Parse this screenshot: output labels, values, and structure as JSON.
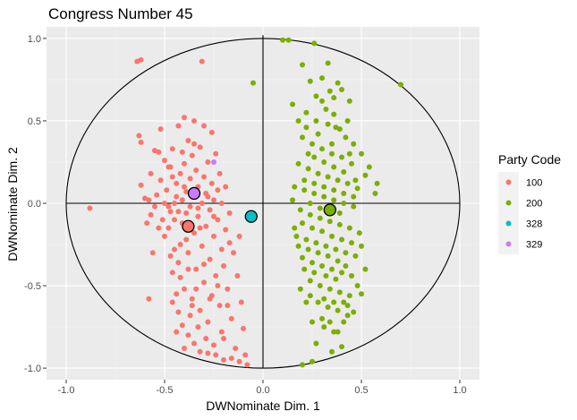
{
  "chart_data": {
    "type": "scatter",
    "title": "Congress Number  45",
    "xlabel": "DWNominate Dim. 1",
    "ylabel": "DWNominate Dim. 2",
    "xlim": [
      -1.1,
      1.1
    ],
    "ylim": [
      -1.07,
      1.07
    ],
    "x_ticks": [
      -1.0,
      -0.5,
      0.0,
      0.5,
      1.0
    ],
    "y_ticks": [
      -1.0,
      -0.5,
      0.0,
      0.5,
      1.0
    ],
    "x_tick_labels": [
      "-1.0",
      "-0.5",
      "0.0",
      "0.5",
      "1.0"
    ],
    "y_tick_labels": [
      "-1.0",
      "-0.5",
      "0.0",
      "0.5",
      "1.0"
    ],
    "grid": true,
    "background": "#ebebeb",
    "unit_circle": true,
    "axes_crosshair": true,
    "legend": {
      "title": "Party Code",
      "position": "right",
      "entries": [
        {
          "label": "100",
          "color": "#f8766d"
        },
        {
          "label": "200",
          "color": "#7cae00"
        },
        {
          "label": "328",
          "color": "#00bfc4"
        },
        {
          "label": "329",
          "color": "#c77cff"
        }
      ]
    },
    "series": [
      {
        "name": "100",
        "color": "#f8766d",
        "centroid": [
          -0.38,
          -0.14
        ],
        "points": [
          [
            -0.88,
            -0.03
          ],
          [
            -0.64,
            0.86
          ],
          [
            -0.62,
            0.87
          ],
          [
            -0.31,
            0.86
          ],
          [
            -0.58,
            -0.58
          ],
          [
            -0.63,
            0.41
          ],
          [
            -0.62,
            0.37
          ],
          [
            -0.62,
            0.11
          ],
          [
            -0.6,
            0.03
          ],
          [
            -0.57,
            -0.07
          ],
          [
            -0.55,
            -0.02
          ],
          [
            -0.54,
            0.05
          ],
          [
            -0.53,
            0.31
          ],
          [
            -0.52,
            0.14
          ],
          [
            -0.51,
            -0.1
          ],
          [
            -0.5,
            -0.2
          ],
          [
            -0.49,
            0.08
          ],
          [
            -0.48,
            0.22
          ],
          [
            -0.47,
            -0.05
          ],
          [
            -0.46,
            0.33
          ],
          [
            -0.45,
            0.0
          ],
          [
            -0.45,
            -0.28
          ],
          [
            -0.44,
            0.12
          ],
          [
            -0.43,
            -0.36
          ],
          [
            -0.42,
            0.18
          ],
          [
            -0.42,
            -0.45
          ],
          [
            -0.41,
            0.02
          ],
          [
            -0.41,
            -0.12
          ],
          [
            -0.4,
            0.24
          ],
          [
            -0.4,
            -0.52
          ],
          [
            -0.39,
            0.07
          ],
          [
            -0.39,
            -0.22
          ],
          [
            -0.38,
            0.38
          ],
          [
            -0.38,
            -0.3
          ],
          [
            -0.37,
            0.15
          ],
          [
            -0.37,
            -0.02
          ],
          [
            -0.36,
            -0.58
          ],
          [
            -0.36,
            0.29
          ],
          [
            -0.35,
            0.04
          ],
          [
            -0.35,
            -0.18
          ],
          [
            -0.34,
            0.2
          ],
          [
            -0.34,
            -0.4
          ],
          [
            -0.33,
            0.1
          ],
          [
            -0.33,
            -0.08
          ],
          [
            -0.32,
            -0.65
          ],
          [
            -0.32,
            0.34
          ],
          [
            -0.31,
            0.0
          ],
          [
            -0.31,
            -0.26
          ],
          [
            -0.3,
            0.16
          ],
          [
            -0.3,
            -0.48
          ],
          [
            -0.29,
            0.06
          ],
          [
            -0.29,
            -0.14
          ],
          [
            -0.28,
            -0.72
          ],
          [
            -0.28,
            0.25
          ],
          [
            -0.27,
            -0.04
          ],
          [
            -0.27,
            -0.34
          ],
          [
            -0.26,
            0.12
          ],
          [
            -0.26,
            -0.56
          ],
          [
            -0.25,
            0.02
          ],
          [
            -0.25,
            -0.2
          ],
          [
            -0.24,
            0.3
          ],
          [
            -0.24,
            -0.44
          ],
          [
            -0.23,
            0.08
          ],
          [
            -0.23,
            -0.1
          ],
          [
            -0.22,
            -0.62
          ],
          [
            -0.22,
            0.18
          ],
          [
            -0.21,
            -0.28
          ],
          [
            -0.21,
            0.0
          ],
          [
            -0.2,
            -0.82
          ],
          [
            -0.2,
            -0.38
          ],
          [
            -0.19,
            -0.16
          ],
          [
            -0.18,
            -0.52
          ],
          [
            -0.17,
            -0.06
          ],
          [
            -0.16,
            -0.7
          ],
          [
            -0.15,
            -0.3
          ],
          [
            -0.14,
            -0.88
          ],
          [
            -0.13,
            -0.44
          ],
          [
            -0.12,
            -0.2
          ],
          [
            -0.11,
            -0.6
          ],
          [
            -0.1,
            -0.76
          ],
          [
            -0.09,
            -0.92
          ],
          [
            -0.08,
            -0.98
          ],
          [
            -0.12,
            -0.96
          ],
          [
            -0.16,
            -0.94
          ],
          [
            -0.2,
            -0.95
          ],
          [
            -0.24,
            -0.92
          ],
          [
            -0.28,
            -0.91
          ],
          [
            -0.32,
            -0.9
          ],
          [
            -0.35,
            -0.85
          ],
          [
            -0.38,
            -0.8
          ],
          [
            -0.41,
            -0.74
          ],
          [
            -0.43,
            -0.66
          ],
          [
            -0.44,
            -0.55
          ],
          [
            -0.46,
            -0.42
          ],
          [
            -0.47,
            -0.32
          ],
          [
            -0.48,
            -0.15
          ],
          [
            -0.5,
            0.0
          ],
          [
            -0.43,
            0.47
          ],
          [
            -0.4,
            0.52
          ],
          [
            -0.35,
            0.5
          ],
          [
            -0.3,
            0.47
          ],
          [
            -0.26,
            0.43
          ],
          [
            -0.52,
            0.45
          ],
          [
            -0.55,
            0.32
          ],
          [
            -0.57,
            0.18
          ],
          [
            -0.59,
            -0.12
          ],
          [
            -0.53,
            -0.15
          ],
          [
            -0.56,
            -0.3
          ],
          [
            -0.43,
            -0.05
          ],
          [
            -0.33,
            -0.03
          ],
          [
            -0.36,
            0.06
          ],
          [
            -0.4,
            0.1
          ],
          [
            -0.44,
            0.04
          ],
          [
            -0.48,
            -0.02
          ],
          [
            -0.46,
            0.16
          ],
          [
            -0.5,
            0.26
          ],
          [
            -0.41,
            0.31
          ],
          [
            -0.35,
            0.36
          ],
          [
            -0.28,
            0.04
          ],
          [
            -0.25,
            -0.08
          ],
          [
            -0.3,
            -0.37
          ],
          [
            -0.34,
            -0.52
          ],
          [
            -0.38,
            -0.4
          ],
          [
            -0.42,
            -0.25
          ],
          [
            -0.45,
            -0.1
          ],
          [
            -0.39,
            -0.06
          ],
          [
            -0.37,
            -0.68
          ],
          [
            -0.33,
            -0.75
          ],
          [
            -0.29,
            -0.82
          ],
          [
            -0.25,
            -0.86
          ],
          [
            -0.21,
            -0.78
          ],
          [
            -0.18,
            -0.62
          ],
          [
            -0.17,
            -0.24
          ],
          [
            -0.19,
            0.1
          ],
          [
            -0.44,
            -0.78
          ],
          [
            -0.4,
            -0.88
          ],
          [
            -0.36,
            -0.62
          ],
          [
            -0.32,
            -0.15
          ],
          [
            -0.47,
            0.22
          ],
          [
            -0.58,
            0.02
          ],
          [
            -0.27,
            -0.58
          ],
          [
            -0.23,
            -0.5
          ],
          [
            -0.46,
            -0.6
          ]
        ]
      },
      {
        "name": "200",
        "color": "#7cae00",
        "centroid": [
          0.34,
          -0.04
        ],
        "points": [
          [
            0.1,
            0.99
          ],
          [
            0.13,
            0.99
          ],
          [
            -0.05,
            0.73
          ],
          [
            0.7,
            0.72
          ],
          [
            0.26,
            0.97
          ],
          [
            0.33,
            0.85
          ],
          [
            0.2,
            0.84
          ],
          [
            0.3,
            0.76
          ],
          [
            0.24,
            0.74
          ],
          [
            0.38,
            0.73
          ],
          [
            0.4,
            0.69
          ],
          [
            0.36,
            0.64
          ],
          [
            0.44,
            0.62
          ],
          [
            0.22,
            0.55
          ],
          [
            0.27,
            0.5
          ],
          [
            0.33,
            0.48
          ],
          [
            0.37,
            0.46
          ],
          [
            0.42,
            0.4
          ],
          [
            0.2,
            0.4
          ],
          [
            0.25,
            0.36
          ],
          [
            0.3,
            0.33
          ],
          [
            0.35,
            0.3
          ],
          [
            0.4,
            0.28
          ],
          [
            0.45,
            0.24
          ],
          [
            0.18,
            0.24
          ],
          [
            0.23,
            0.21
          ],
          [
            0.28,
            0.18
          ],
          [
            0.33,
            0.16
          ],
          [
            0.38,
            0.14
          ],
          [
            0.43,
            0.12
          ],
          [
            0.48,
            0.09
          ],
          [
            0.52,
            0.17
          ],
          [
            0.57,
            0.06
          ],
          [
            0.16,
            0.1
          ],
          [
            0.21,
            0.08
          ],
          [
            0.26,
            0.06
          ],
          [
            0.31,
            0.04
          ],
          [
            0.36,
            0.02
          ],
          [
            0.41,
            0.0
          ],
          [
            0.46,
            -0.02
          ],
          [
            0.19,
            -0.04
          ],
          [
            0.24,
            -0.07
          ],
          [
            0.29,
            -0.09
          ],
          [
            0.34,
            -0.11
          ],
          [
            0.39,
            -0.13
          ],
          [
            0.44,
            -0.15
          ],
          [
            0.49,
            -0.18
          ],
          [
            0.17,
            -0.2
          ],
          [
            0.22,
            -0.22
          ],
          [
            0.27,
            -0.24
          ],
          [
            0.32,
            -0.26
          ],
          [
            0.37,
            -0.28
          ],
          [
            0.42,
            -0.3
          ],
          [
            0.47,
            -0.32
          ],
          [
            0.2,
            -0.33
          ],
          [
            0.25,
            -0.36
          ],
          [
            0.3,
            -0.38
          ],
          [
            0.35,
            -0.4
          ],
          [
            0.4,
            -0.42
          ],
          [
            0.45,
            -0.44
          ],
          [
            0.24,
            -0.47
          ],
          [
            0.29,
            -0.5
          ],
          [
            0.34,
            -0.52
          ],
          [
            0.39,
            -0.54
          ],
          [
            0.44,
            -0.56
          ],
          [
            0.28,
            -0.6
          ],
          [
            0.33,
            -0.63
          ],
          [
            0.38,
            -0.65
          ],
          [
            0.43,
            -0.68
          ],
          [
            0.25,
            -0.72
          ],
          [
            0.31,
            -0.75
          ],
          [
            0.36,
            -0.78
          ],
          [
            0.41,
            -0.72
          ],
          [
            0.22,
            -0.6
          ],
          [
            0.27,
            -0.85
          ],
          [
            0.2,
            -0.98
          ],
          [
            0.25,
            -0.96
          ],
          [
            0.4,
            -0.87
          ],
          [
            0.35,
            -0.9
          ],
          [
            0.5,
            -0.55
          ],
          [
            0.15,
            0.6
          ],
          [
            0.18,
            0.5
          ],
          [
            0.22,
            0.46
          ],
          [
            0.28,
            0.42
          ],
          [
            0.32,
            0.57
          ],
          [
            0.36,
            0.54
          ],
          [
            0.39,
            0.45
          ],
          [
            0.43,
            0.5
          ],
          [
            0.46,
            0.36
          ],
          [
            0.5,
            0.3
          ],
          [
            0.54,
            0.22
          ],
          [
            0.58,
            0.12
          ],
          [
            0.26,
            0.28
          ],
          [
            0.31,
            0.25
          ],
          [
            0.36,
            0.22
          ],
          [
            0.41,
            0.19
          ],
          [
            0.15,
            0.02
          ],
          [
            0.2,
            -0.12
          ],
          [
            0.25,
            -0.15
          ],
          [
            0.3,
            -0.17
          ],
          [
            0.35,
            -0.2
          ],
          [
            0.4,
            -0.22
          ],
          [
            0.45,
            -0.24
          ],
          [
            0.5,
            -0.26
          ],
          [
            0.52,
            -0.4
          ],
          [
            0.48,
            -0.5
          ],
          [
            0.43,
            -0.62
          ],
          [
            0.38,
            -0.35
          ],
          [
            0.33,
            -0.32
          ],
          [
            0.28,
            -0.3
          ],
          [
            0.23,
            -0.28
          ],
          [
            0.18,
            -0.26
          ],
          [
            0.16,
            -0.15
          ],
          [
            0.21,
            0.14
          ],
          [
            0.26,
            0.12
          ],
          [
            0.31,
            0.1
          ],
          [
            0.36,
            0.08
          ],
          [
            0.41,
            0.06
          ],
          [
            0.46,
            0.04
          ],
          [
            0.35,
            0.36
          ],
          [
            0.3,
            0.62
          ],
          [
            0.27,
            0.65
          ],
          [
            0.34,
            0.68
          ],
          [
            0.23,
            0.3
          ],
          [
            0.44,
            0.3
          ],
          [
            0.47,
            0.14
          ],
          [
            0.39,
            -0.06
          ],
          [
            0.29,
            -0.03
          ],
          [
            0.24,
            0.0
          ],
          [
            0.42,
            -0.38
          ],
          [
            0.37,
            -0.46
          ],
          [
            0.32,
            -0.44
          ],
          [
            0.26,
            -0.42
          ],
          [
            0.21,
            -0.4
          ],
          [
            0.19,
            -0.52
          ],
          [
            0.24,
            -0.56
          ],
          [
            0.31,
            -0.58
          ],
          [
            0.36,
            -0.6
          ],
          [
            0.41,
            -0.6
          ],
          [
            0.46,
            -0.66
          ],
          [
            0.3,
            -0.7
          ],
          [
            0.34,
            -0.72
          ],
          [
            0.38,
            -0.78
          ]
        ]
      },
      {
        "name": "328",
        "color": "#00bfc4",
        "centroid": [
          -0.06,
          -0.08
        ],
        "points": [
          [
            -0.06,
            -0.08
          ]
        ]
      },
      {
        "name": "329",
        "color": "#c77cff",
        "centroid": [
          -0.35,
          0.06
        ],
        "points": [
          [
            -0.25,
            0.25
          ]
        ]
      }
    ]
  }
}
